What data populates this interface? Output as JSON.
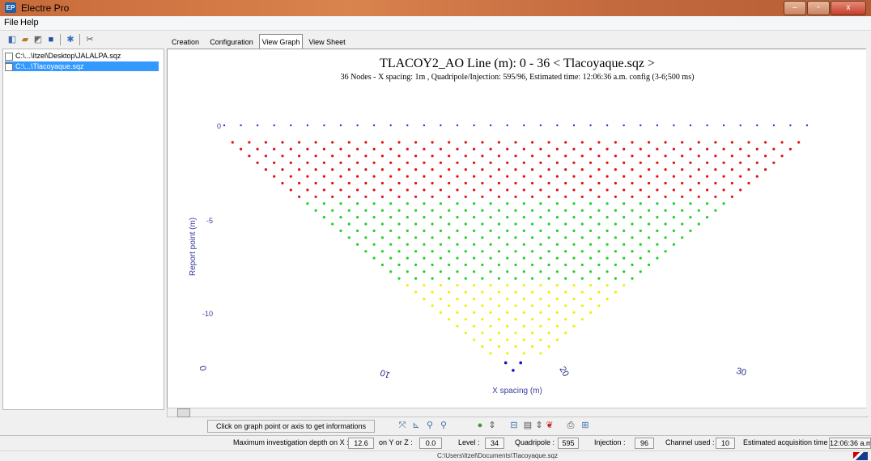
{
  "window": {
    "title": "Electre Pro",
    "buttons": [
      "–",
      "▫",
      "x"
    ]
  },
  "menu": {
    "file": "File",
    "help": "Help"
  },
  "files": [
    {
      "label": "C:\\...\\Itzel\\Desktop\\JALALPA.sqz",
      "selected": false
    },
    {
      "label": "C:\\...\\Tlacoyaque.sqz",
      "selected": true
    }
  ],
  "tabs": [
    {
      "label": "Creation",
      "active": false
    },
    {
      "label": "Configuration",
      "active": false
    },
    {
      "label": "View Graph",
      "active": true
    },
    {
      "label": "View Sheet",
      "active": false
    }
  ],
  "graph": {
    "title": "TLACOY2_AO   Line (m): 0 - 36 < Tlacoyaque.sqz >",
    "subtitle": "36 Nodes  - X spacing: 1m , Quadripole/Injection: 595/96, Estimated time: 12:06:36 a.m. config (3-6;500 ms)",
    "y_label": "Report point (m)",
    "x_label": "X spacing (m)",
    "y_ticks": [
      "0",
      "-5",
      "-10"
    ],
    "x_ticks": [
      "0",
      "10",
      "20",
      "30"
    ]
  },
  "chart_data": {
    "type": "scatter",
    "xlabel": "X spacing (m)",
    "ylabel": "Report point (m)",
    "x_ticks": [
      0,
      10,
      20,
      30
    ],
    "y_ticks": [
      0,
      -5,
      -10
    ],
    "nodes": 36,
    "levels": 34,
    "quadripoles": 595,
    "injections": 96,
    "series": [
      {
        "color": "#2b2bd9",
        "depth_range": [
          0,
          0
        ]
      },
      {
        "color": "#e01010",
        "depth_range": [
          -0.9,
          -4.1
        ]
      },
      {
        "color": "#22d022",
        "depth_range": [
          -4.1,
          -8.2
        ]
      },
      {
        "color": "#f0f000",
        "depth_range": [
          -8.2,
          -12.1
        ]
      },
      {
        "color": "#1010d0",
        "depth_range": [
          -12.3,
          -12.6
        ]
      }
    ]
  },
  "bottom_tools": {
    "info_text": "Click on graph point or axis to get informations",
    "icons": [
      "fit-icon",
      "axis-icon",
      "zoom-in-icon",
      "zoom-out-icon",
      "globe-icon",
      "spin-icon",
      "chart-icon",
      "export-icon",
      "spin2-icon",
      "color-icon",
      "print-icon",
      "setup-icon"
    ]
  },
  "status": {
    "depth_label": "Maximum investigation depth on X :",
    "depth_x": "12.6",
    "yz_label": "on Y or Z :",
    "depth_yz": "0.0",
    "level_label": "Level :",
    "level": "34",
    "quad_label": "Quadripole :",
    "quad": "595",
    "inj_label": "Injection :",
    "inj": "96",
    "chan_label": "Channel used :",
    "chan": "10",
    "time_label": "Estimated acquisition time :",
    "time": "12:06:36 a.m."
  },
  "path": "C:\\Users\\Itzel\\Documents\\Tlacoyaque.sqz"
}
